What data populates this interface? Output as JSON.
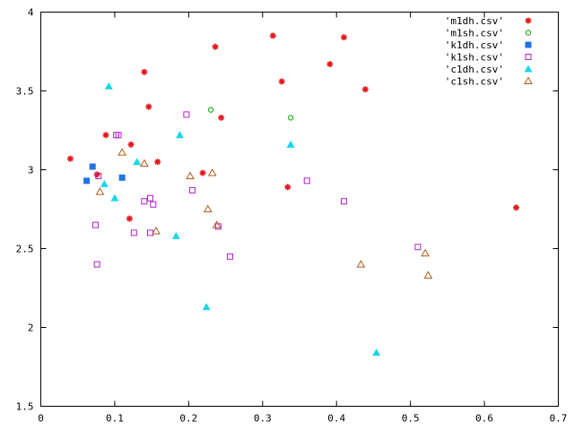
{
  "chart_data": {
    "type": "scatter",
    "title": "",
    "xlabel": "",
    "ylabel": "",
    "xlim": [
      0,
      0.7
    ],
    "ylim": [
      1.5,
      4
    ],
    "grid": false,
    "legend_position": "top-right",
    "x_ticks": [
      "0",
      "0.1",
      "0.2",
      "0.3",
      "0.4",
      "0.5",
      "0.6",
      "0.7"
    ],
    "y_ticks": [
      "1.5",
      "2",
      "2.5",
      "3",
      "3.5",
      "4"
    ],
    "series": [
      {
        "name": "'m1dh.csv'",
        "color": "#e41a1c",
        "marker": "asterisk",
        "points": [
          [
            0.04,
            3.07
          ],
          [
            0.076,
            2.97
          ],
          [
            0.088,
            3.22
          ],
          [
            0.12,
            2.69
          ],
          [
            0.122,
            3.16
          ],
          [
            0.14,
            3.62
          ],
          [
            0.146,
            3.4
          ],
          [
            0.158,
            3.05
          ],
          [
            0.219,
            2.98
          ],
          [
            0.236,
            3.78
          ],
          [
            0.244,
            3.33
          ],
          [
            0.314,
            3.85
          ],
          [
            0.326,
            3.56
          ],
          [
            0.334,
            2.89
          ],
          [
            0.391,
            3.67
          ],
          [
            0.41,
            3.84
          ],
          [
            0.439,
            3.51
          ],
          [
            0.643,
            2.76
          ]
        ]
      },
      {
        "name": "'m1sh.csv'",
        "color": "#22aa22",
        "marker": "circle-open",
        "points": [
          [
            0.23,
            3.38
          ],
          [
            0.338,
            3.33
          ]
        ]
      },
      {
        "name": "'k1dh.csv'",
        "color": "#1e74e8",
        "marker": "square-filled",
        "points": [
          [
            0.062,
            2.93
          ],
          [
            0.07,
            3.02
          ],
          [
            0.11,
            2.95
          ]
        ]
      },
      {
        "name": "'k1sh.csv'",
        "color": "#b020c8",
        "marker": "square-open",
        "points": [
          [
            0.074,
            2.65
          ],
          [
            0.076,
            2.4
          ],
          [
            0.078,
            2.96
          ],
          [
            0.102,
            3.22
          ],
          [
            0.105,
            3.22
          ],
          [
            0.126,
            2.6
          ],
          [
            0.14,
            2.8
          ],
          [
            0.148,
            2.82
          ],
          [
            0.148,
            2.6
          ],
          [
            0.152,
            2.78
          ],
          [
            0.197,
            3.35
          ],
          [
            0.205,
            2.87
          ],
          [
            0.24,
            2.64
          ],
          [
            0.256,
            2.45
          ],
          [
            0.36,
            2.93
          ],
          [
            0.41,
            2.8
          ],
          [
            0.51,
            2.51
          ]
        ]
      },
      {
        "name": "'c1dh.csv'",
        "color": "#18d8e8",
        "marker": "triangle-filled",
        "points": [
          [
            0.086,
            2.91
          ],
          [
            0.092,
            3.53
          ],
          [
            0.1,
            2.82
          ],
          [
            0.13,
            3.05
          ],
          [
            0.183,
            2.58
          ],
          [
            0.188,
            3.22
          ],
          [
            0.224,
            2.13
          ],
          [
            0.338,
            3.16
          ],
          [
            0.454,
            1.84
          ]
        ]
      },
      {
        "name": "'c1sh.csv'",
        "color": "#b05a1c",
        "marker": "triangle-open",
        "points": [
          [
            0.08,
            2.86
          ],
          [
            0.11,
            3.11
          ],
          [
            0.14,
            3.04
          ],
          [
            0.156,
            2.61
          ],
          [
            0.202,
            2.96
          ],
          [
            0.226,
            2.75
          ],
          [
            0.232,
            2.98
          ],
          [
            0.238,
            2.65
          ],
          [
            0.433,
            2.4
          ],
          [
            0.52,
            2.47
          ],
          [
            0.524,
            2.33
          ]
        ]
      }
    ]
  }
}
